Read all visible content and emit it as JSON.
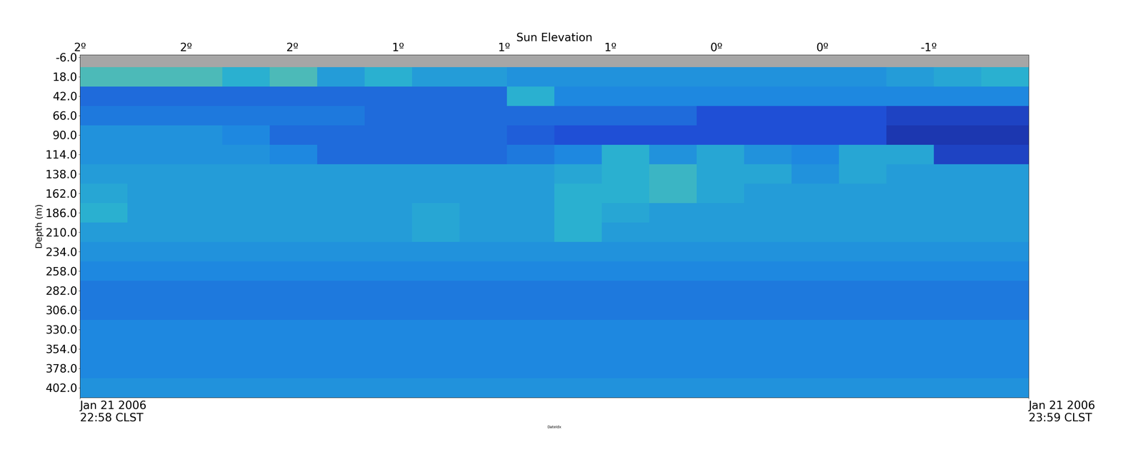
{
  "chart_data": {
    "type": "heatmap",
    "x2label": "Sun Elevation",
    "xlabel": "DateIdx",
    "ylabel": "Depth (m)",
    "xlim": [
      0,
      61
    ],
    "ylim": [
      414,
      -9
    ],
    "xticks": [
      {
        "value": 0,
        "label": "Jan 21 2006\n22:58 CLST"
      },
      {
        "value": 61,
        "label": "Jan 21 2006\n23:59 CLST"
      }
    ],
    "x2ticks": [
      {
        "value": 0,
        "label": "2º"
      },
      {
        "value": 6.82,
        "label": "2º"
      },
      {
        "value": 13.64,
        "label": "2º"
      },
      {
        "value": 20.46,
        "label": "1º"
      },
      {
        "value": 27.28,
        "label": "1º"
      },
      {
        "value": 34.1,
        "label": "1º"
      },
      {
        "value": 40.92,
        "label": "0º"
      },
      {
        "value": 47.74,
        "label": "0º"
      },
      {
        "value": 54.56,
        "label": "-1º"
      }
    ],
    "yticks": [
      {
        "value": -6,
        "label": "-6.0"
      },
      {
        "value": 18,
        "label": "18.0"
      },
      {
        "value": 42,
        "label": "42.0"
      },
      {
        "value": 66,
        "label": "66.0"
      },
      {
        "value": 90,
        "label": "90.0"
      },
      {
        "value": 114,
        "label": "114.0"
      },
      {
        "value": 138,
        "label": "138.0"
      },
      {
        "value": 162,
        "label": "162.0"
      },
      {
        "value": 186,
        "label": "186.0"
      },
      {
        "value": 210,
        "label": "210.0"
      },
      {
        "value": 234,
        "label": "234.0"
      },
      {
        "value": 258,
        "label": "258.0"
      },
      {
        "value": 282,
        "label": "282.0"
      },
      {
        "value": 306,
        "label": "306.0"
      },
      {
        "value": 330,
        "label": "330.0"
      },
      {
        "value": 354,
        "label": "354.0"
      },
      {
        "value": 378,
        "label": "378.0"
      },
      {
        "value": 402,
        "label": "402.0"
      }
    ],
    "x_edges": [
      0,
      3.05,
      6.1,
      9.15,
      12.2,
      15.25,
      18.3,
      21.35,
      24.4,
      27.45,
      30.5,
      33.55,
      36.6,
      39.65,
      42.7,
      45.75,
      48.8,
      51.85,
      54.9,
      57.95,
      61
    ],
    "y_edges": [
      6,
      30,
      54,
      78,
      102,
      126,
      150,
      174,
      198,
      222,
      246,
      270,
      294,
      318,
      342,
      366,
      390,
      414
    ],
    "clim": [
      0,
      10
    ],
    "cells": [
      [
        7,
        7,
        7,
        6,
        7,
        5,
        6,
        5,
        5,
        4.5,
        4.5,
        4.5,
        4.5,
        4.5,
        4.5,
        4.5,
        4.5,
        5,
        5.5,
        6
      ],
      [
        3,
        3,
        3,
        3,
        3,
        3,
        3,
        3,
        3,
        6,
        4,
        4,
        4,
        4,
        4,
        4,
        4,
        4,
        4,
        4
      ],
      [
        3.5,
        3.5,
        3.5,
        3.5,
        3.5,
        3.5,
        3,
        3,
        3,
        3,
        3,
        3,
        3,
        2,
        2,
        2,
        2,
        1.5,
        1.5,
        1.5
      ],
      [
        4.5,
        4.5,
        4.5,
        4,
        3,
        3,
        3,
        3,
        3,
        2.5,
        2,
        2,
        2,
        2,
        2,
        2,
        2,
        1,
        1,
        1
      ],
      [
        4.5,
        4.5,
        4.5,
        4.5,
        4,
        3,
        3,
        3,
        3,
        3.5,
        4,
        6,
        4.5,
        5.5,
        4.5,
        4,
        5.5,
        5.5,
        1.5,
        1.5
      ],
      [
        5,
        5,
        5,
        5,
        5,
        5,
        5,
        5,
        5,
        5,
        5.5,
        6,
        6.5,
        5.5,
        5.5,
        4.5,
        5.5,
        5,
        5,
        5
      ],
      [
        5.5,
        5,
        5,
        5,
        5,
        5,
        5,
        5,
        5,
        5,
        6,
        6,
        6.5,
        5.5,
        5,
        5,
        5,
        5,
        5,
        5
      ],
      [
        6,
        5,
        5,
        5,
        5,
        5,
        5,
        5.5,
        5,
        5,
        6,
        5.5,
        5,
        5,
        5,
        5,
        5,
        5,
        5,
        5
      ],
      [
        5,
        5,
        5,
        5,
        5,
        5,
        5,
        5.5,
        5,
        5,
        6,
        5,
        5,
        5,
        5,
        5,
        5,
        5,
        5,
        5
      ],
      [
        4.5,
        4.5,
        4.5,
        4.5,
        4.5,
        4.5,
        4.5,
        4.5,
        4.5,
        4.5,
        4.5,
        4.5,
        4.5,
        4.5,
        4.5,
        4.5,
        4.5,
        4.5,
        4.5,
        4.5
      ],
      [
        4,
        4,
        4,
        4,
        4,
        4,
        4,
        4,
        4,
        4,
        4,
        4,
        4,
        4,
        4,
        4,
        4,
        4,
        4,
        4
      ],
      [
        3.5,
        3.5,
        3.5,
        3.5,
        3.5,
        3.5,
        3.5,
        3.5,
        3.5,
        3.5,
        3.5,
        3.5,
        3.5,
        3.5,
        3.5,
        3.5,
        3.5,
        3.5,
        3.5,
        3.5
      ],
      [
        3.5,
        3.5,
        3.5,
        3.5,
        3.5,
        3.5,
        3.5,
        3.5,
        3.5,
        3.5,
        3.5,
        3.5,
        3.5,
        3.5,
        3.5,
        3.5,
        3.5,
        3.5,
        3.5,
        3.5
      ],
      [
        4,
        4,
        4,
        4,
        4,
        4,
        4,
        4,
        4,
        4,
        4,
        4,
        4,
        4,
        4,
        4,
        4,
        4,
        4,
        4
      ],
      [
        4,
        4,
        4,
        4,
        4,
        4,
        4,
        4,
        4,
        4,
        4,
        4,
        4,
        4,
        4,
        4,
        4,
        4,
        4,
        4
      ],
      [
        4,
        4,
        4,
        4,
        4,
        4,
        4,
        4,
        4,
        4,
        4,
        4,
        4,
        4,
        4,
        4,
        4,
        4,
        4,
        4
      ],
      [
        4.5,
        4.5,
        4.5,
        4.5,
        4.5,
        4.5,
        4.5,
        4.5,
        4.5,
        4.5,
        4.5,
        4.5,
        4.5,
        4.5,
        4.5,
        4.5,
        4.5,
        4.5,
        4.5,
        4.5
      ]
    ]
  }
}
